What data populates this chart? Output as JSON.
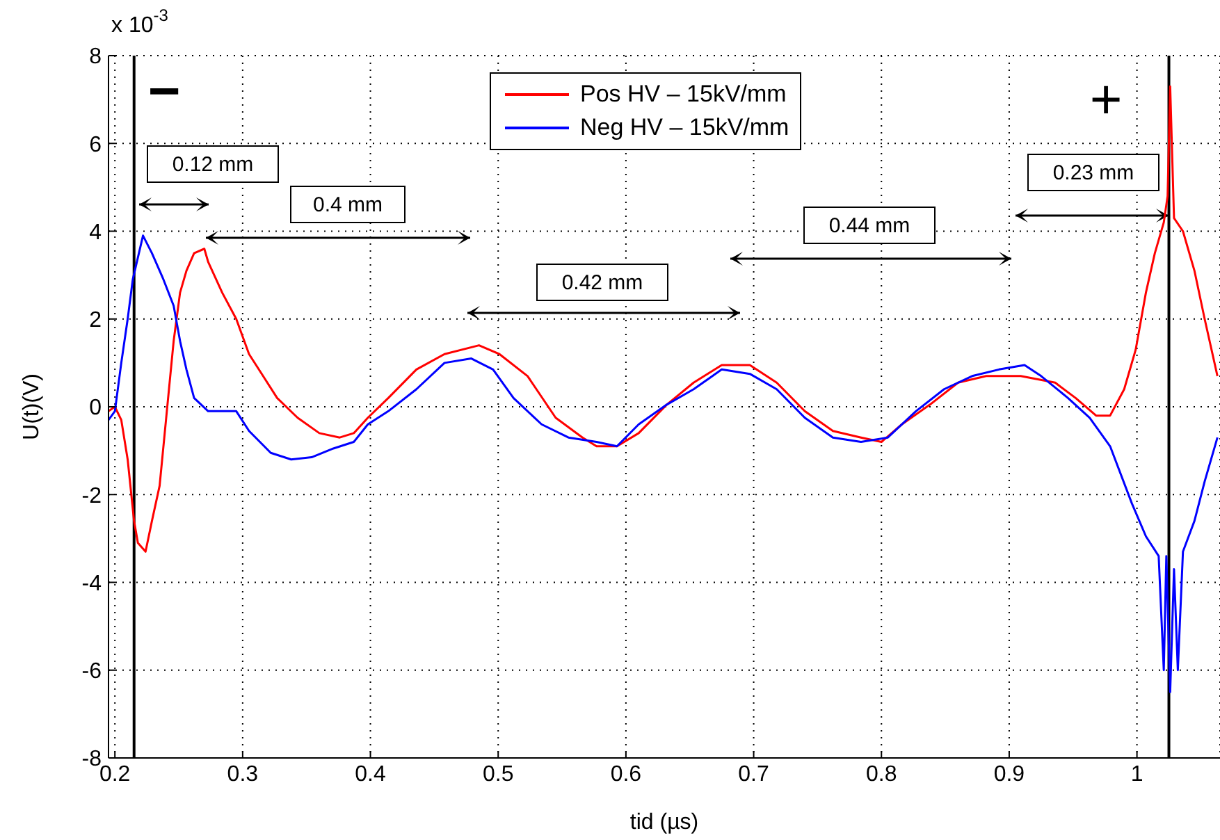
{
  "chart_data": {
    "type": "line",
    "xlabel": "tid (µs)",
    "ylabel": "U(t)(V)",
    "xlim": [
      0.195,
      1.065
    ],
    "xticks": [
      0.2,
      0.3,
      0.4,
      0.5,
      0.6,
      0.7,
      0.8,
      0.9,
      1
    ],
    "ylim": [
      -8,
      8
    ],
    "yticks": [
      -8,
      -6,
      -4,
      -2,
      0,
      2,
      4,
      6,
      8
    ],
    "grid": true,
    "legend": "top",
    "line_style": "solid",
    "marker": "none",
    "ref_lines": [
      {
        "axis": "x",
        "value": 0.215,
        "color": "#000000"
      },
      {
        "axis": "x",
        "value": 1.025,
        "color": "#000000"
      }
    ],
    "annotations": [
      "x 10$^{-3}$",
      "−",
      "+",
      "0.12 mm",
      "0.4 mm",
      "0.42 mm",
      "0.44 mm",
      "0.23 mm"
    ],
    "series": [
      {
        "name": "Pos HV – 15kV/mm",
        "color": "#ff0000",
        "x": [
          0.195,
          0.2,
          0.205,
          0.21,
          0.215,
          0.218,
          0.224,
          0.229,
          0.235,
          0.24,
          0.246,
          0.251,
          0.256,
          0.262,
          0.27,
          0.273,
          0.284,
          0.295,
          0.305,
          0.316,
          0.327,
          0.343,
          0.36,
          0.376,
          0.387,
          0.398,
          0.414,
          0.436,
          0.458,
          0.485,
          0.501,
          0.523,
          0.545,
          0.566,
          0.577,
          0.593,
          0.61,
          0.632,
          0.653,
          0.675,
          0.697,
          0.718,
          0.74,
          0.762,
          0.784,
          0.8,
          0.816,
          0.838,
          0.86,
          0.882,
          0.909,
          0.936,
          0.952,
          0.968,
          0.979,
          0.99,
          0.999,
          1.007,
          1.014,
          1.021,
          1.024,
          1.026,
          1.029,
          1.036,
          1.045,
          1.053,
          1.063
        ],
        "values": [
          -0.1,
          0,
          -0.3,
          -1.2,
          -2.6,
          -3.1,
          -3.3,
          -2.6,
          -1.8,
          -0.3,
          1.5,
          2.6,
          3.1,
          3.5,
          3.6,
          3.3,
          2.6,
          2.0,
          1.2,
          0.7,
          0.2,
          -0.25,
          -0.6,
          -0.7,
          -0.6,
          -0.25,
          0.2,
          0.85,
          1.2,
          1.4,
          1.2,
          0.7,
          -0.25,
          -0.7,
          -0.9,
          -0.9,
          -0.6,
          0.05,
          0.55,
          0.95,
          0.95,
          0.55,
          -0.1,
          -0.55,
          -0.7,
          -0.8,
          -0.4,
          0.05,
          0.55,
          0.7,
          0.7,
          0.55,
          0.2,
          -0.2,
          -0.2,
          0.4,
          1.3,
          2.6,
          3.5,
          4.2,
          4.8,
          7.3,
          4.3,
          4.0,
          3.1,
          2.0,
          0.7
        ]
      },
      {
        "name": "Neg HV – 15kV/mm",
        "color": "#0000ff",
        "x": [
          0.195,
          0.2,
          0.205,
          0.21,
          0.214,
          0.218,
          0.222,
          0.229,
          0.238,
          0.246,
          0.251,
          0.256,
          0.262,
          0.273,
          0.284,
          0.295,
          0.305,
          0.322,
          0.338,
          0.354,
          0.371,
          0.387,
          0.398,
          0.414,
          0.436,
          0.458,
          0.479,
          0.496,
          0.512,
          0.534,
          0.555,
          0.577,
          0.593,
          0.61,
          0.632,
          0.653,
          0.675,
          0.697,
          0.718,
          0.74,
          0.762,
          0.784,
          0.805,
          0.827,
          0.849,
          0.871,
          0.892,
          0.912,
          0.925,
          0.946,
          0.963,
          0.979,
          0.996,
          1.007,
          1.017,
          1.021,
          1.023,
          1.026,
          1.029,
          1.032,
          1.036,
          1.045,
          1.053,
          1.063
        ],
        "values": [
          -0.3,
          -0.1,
          1.0,
          2.0,
          2.9,
          3.4,
          3.9,
          3.5,
          2.9,
          2.3,
          1.5,
          0.85,
          0.2,
          -0.1,
          -0.1,
          -0.1,
          -0.55,
          -1.05,
          -1.2,
          -1.15,
          -0.95,
          -0.8,
          -0.4,
          -0.1,
          0.4,
          1.0,
          1.1,
          0.85,
          0.2,
          -0.4,
          -0.7,
          -0.8,
          -0.9,
          -0.4,
          0.05,
          0.4,
          0.85,
          0.75,
          0.4,
          -0.25,
          -0.7,
          -0.8,
          -0.7,
          -0.1,
          0.4,
          0.7,
          0.85,
          0.95,
          0.7,
          0.2,
          -0.25,
          -0.9,
          -2.2,
          -2.95,
          -3.4,
          -6.0,
          -3.4,
          -6.5,
          -3.7,
          -6.0,
          -3.3,
          -2.6,
          -1.7,
          -0.7
        ]
      }
    ]
  }
}
